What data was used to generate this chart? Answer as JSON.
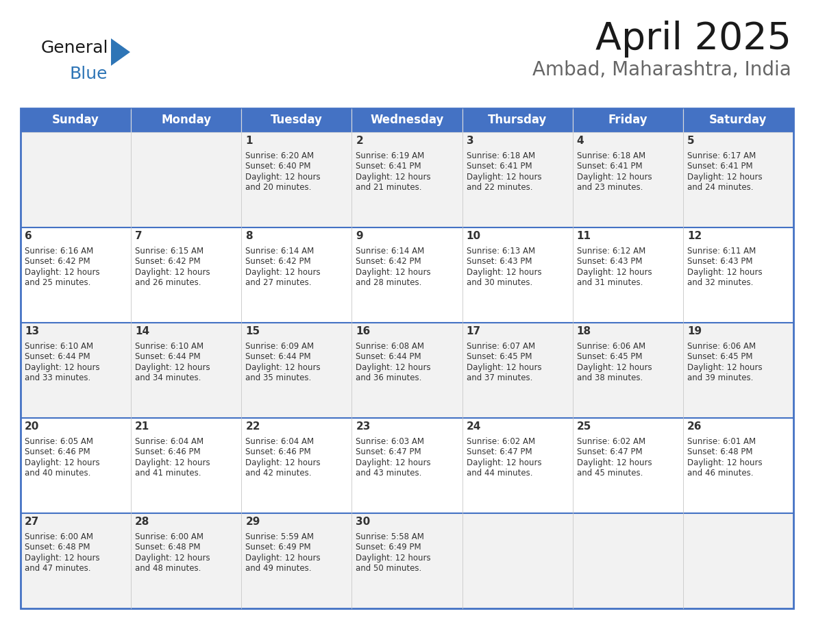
{
  "title": "April 2025",
  "subtitle": "Ambad, Maharashtra, India",
  "header_bg": "#4472C4",
  "header_text_color": "#FFFFFF",
  "weekdays": [
    "Sunday",
    "Monday",
    "Tuesday",
    "Wednesday",
    "Thursday",
    "Friday",
    "Saturday"
  ],
  "days": [
    {
      "day": null,
      "sunrise": null,
      "sunset": null,
      "daylight_min": null
    },
    {
      "day": null,
      "sunrise": null,
      "sunset": null,
      "daylight_min": null
    },
    {
      "day": 1,
      "sunrise": "6:20 AM",
      "sunset": "6:40 PM",
      "daylight_min": 20
    },
    {
      "day": 2,
      "sunrise": "6:19 AM",
      "sunset": "6:41 PM",
      "daylight_min": 21
    },
    {
      "day": 3,
      "sunrise": "6:18 AM",
      "sunset": "6:41 PM",
      "daylight_min": 22
    },
    {
      "day": 4,
      "sunrise": "6:18 AM",
      "sunset": "6:41 PM",
      "daylight_min": 23
    },
    {
      "day": 5,
      "sunrise": "6:17 AM",
      "sunset": "6:41 PM",
      "daylight_min": 24
    },
    {
      "day": 6,
      "sunrise": "6:16 AM",
      "sunset": "6:42 PM",
      "daylight_min": 25
    },
    {
      "day": 7,
      "sunrise": "6:15 AM",
      "sunset": "6:42 PM",
      "daylight_min": 26
    },
    {
      "day": 8,
      "sunrise": "6:14 AM",
      "sunset": "6:42 PM",
      "daylight_min": 27
    },
    {
      "day": 9,
      "sunrise": "6:14 AM",
      "sunset": "6:42 PM",
      "daylight_min": 28
    },
    {
      "day": 10,
      "sunrise": "6:13 AM",
      "sunset": "6:43 PM",
      "daylight_min": 30
    },
    {
      "day": 11,
      "sunrise": "6:12 AM",
      "sunset": "6:43 PM",
      "daylight_min": 31
    },
    {
      "day": 12,
      "sunrise": "6:11 AM",
      "sunset": "6:43 PM",
      "daylight_min": 32
    },
    {
      "day": 13,
      "sunrise": "6:10 AM",
      "sunset": "6:44 PM",
      "daylight_min": 33
    },
    {
      "day": 14,
      "sunrise": "6:10 AM",
      "sunset": "6:44 PM",
      "daylight_min": 34
    },
    {
      "day": 15,
      "sunrise": "6:09 AM",
      "sunset": "6:44 PM",
      "daylight_min": 35
    },
    {
      "day": 16,
      "sunrise": "6:08 AM",
      "sunset": "6:44 PM",
      "daylight_min": 36
    },
    {
      "day": 17,
      "sunrise": "6:07 AM",
      "sunset": "6:45 PM",
      "daylight_min": 37
    },
    {
      "day": 18,
      "sunrise": "6:06 AM",
      "sunset": "6:45 PM",
      "daylight_min": 38
    },
    {
      "day": 19,
      "sunrise": "6:06 AM",
      "sunset": "6:45 PM",
      "daylight_min": 39
    },
    {
      "day": 20,
      "sunrise": "6:05 AM",
      "sunset": "6:46 PM",
      "daylight_min": 40
    },
    {
      "day": 21,
      "sunrise": "6:04 AM",
      "sunset": "6:46 PM",
      "daylight_min": 41
    },
    {
      "day": 22,
      "sunrise": "6:04 AM",
      "sunset": "6:46 PM",
      "daylight_min": 42
    },
    {
      "day": 23,
      "sunrise": "6:03 AM",
      "sunset": "6:47 PM",
      "daylight_min": 43
    },
    {
      "day": 24,
      "sunrise": "6:02 AM",
      "sunset": "6:47 PM",
      "daylight_min": 44
    },
    {
      "day": 25,
      "sunrise": "6:02 AM",
      "sunset": "6:47 PM",
      "daylight_min": 45
    },
    {
      "day": 26,
      "sunrise": "6:01 AM",
      "sunset": "6:48 PM",
      "daylight_min": 46
    },
    {
      "day": 27,
      "sunrise": "6:00 AM",
      "sunset": "6:48 PM",
      "daylight_min": 47
    },
    {
      "day": 28,
      "sunrise": "6:00 AM",
      "sunset": "6:48 PM",
      "daylight_min": 48
    },
    {
      "day": 29,
      "sunrise": "5:59 AM",
      "sunset": "6:49 PM",
      "daylight_min": 49
    },
    {
      "day": 30,
      "sunrise": "5:58 AM",
      "sunset": "6:49 PM",
      "daylight_min": 50
    },
    {
      "day": null,
      "sunrise": null,
      "sunset": null,
      "daylight_min": null
    },
    {
      "day": null,
      "sunrise": null,
      "sunset": null,
      "daylight_min": null
    },
    {
      "day": null,
      "sunrise": null,
      "sunset": null,
      "daylight_min": null
    },
    {
      "day": null,
      "sunrise": null,
      "sunset": null,
      "daylight_min": null
    }
  ],
  "logo_text1": "General",
  "logo_text2": "Blue",
  "logo_color1": "#1a1a1a",
  "logo_color2": "#2E75B6",
  "logo_triangle_color": "#2E75B6",
  "cell_bg_row0": "#F2F2F2",
  "cell_bg_row1": "#FFFFFF",
  "cell_bg_row2": "#F2F2F2",
  "cell_bg_row3": "#FFFFFF",
  "cell_bg_row4": "#F2F2F2",
  "cell_border_color": "#4472C4",
  "cell_inner_border": "#CCCCCC",
  "day_number_color": "#333333",
  "info_text_color": "#333333",
  "title_color": "#1a1a1a",
  "subtitle_color": "#666666",
  "title_fontsize": 40,
  "subtitle_fontsize": 20,
  "header_fontsize": 12,
  "day_num_fontsize": 11,
  "info_fontsize": 8.5
}
